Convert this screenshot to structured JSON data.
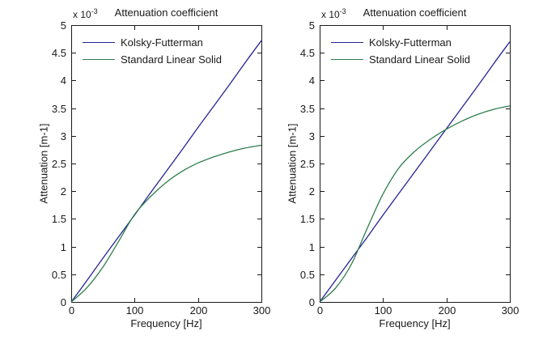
{
  "figure": {
    "background": "#ffffff",
    "axis_color": "#1a1a1a"
  },
  "chart_data": [
    {
      "type": "line",
      "title": "Attenuation coefficient",
      "xlabel": "Frequency [Hz]",
      "ylabel": "Attenuation [m-1]",
      "y_scale": {
        "base": "x 10",
        "exponent": "-3"
      },
      "xlim": [
        0,
        300
      ],
      "ylim": [
        0,
        5
      ],
      "xticks": [
        0,
        100,
        200,
        300
      ],
      "yticks": [
        0,
        0.5,
        1,
        1.5,
        2,
        2.5,
        3,
        3.5,
        4,
        4.5,
        5
      ],
      "grid": false,
      "legend_position": "upper-left",
      "x": [
        0,
        25,
        50,
        75,
        100,
        125,
        150,
        175,
        200,
        225,
        250,
        275,
        300
      ],
      "series": [
        {
          "name": "Kolsky-Futterman",
          "color": "#232396",
          "values": [
            0,
            0.39,
            0.79,
            1.18,
            1.57,
            1.97,
            2.36,
            2.75,
            3.15,
            3.54,
            3.93,
            4.33,
            4.72
          ]
        },
        {
          "name": "Standard Linear Solid",
          "color": "#2d7d4b",
          "values": [
            0,
            0.26,
            0.63,
            1.1,
            1.58,
            1.9,
            2.16,
            2.36,
            2.51,
            2.62,
            2.71,
            2.78,
            2.83
          ]
        }
      ]
    },
    {
      "type": "line",
      "title": "Attenuation coefficient",
      "xlabel": "Frequency [Hz]",
      "ylabel": "Attenuation [m-1]",
      "y_scale": {
        "base": "x 10",
        "exponent": "-3"
      },
      "xlim": [
        0,
        300
      ],
      "ylim": [
        0,
        5
      ],
      "xticks": [
        0,
        100,
        200,
        300
      ],
      "yticks": [
        0,
        0.5,
        1,
        1.5,
        2,
        2.5,
        3,
        3.5,
        4,
        4.5,
        5
      ],
      "grid": false,
      "legend_position": "upper-left",
      "x": [
        0,
        25,
        50,
        75,
        100,
        125,
        150,
        175,
        200,
        225,
        250,
        275,
        300
      ],
      "series": [
        {
          "name": "Kolsky-Futterman",
          "color": "#232396",
          "values": [
            0,
            0.39,
            0.78,
            1.17,
            1.57,
            1.96,
            2.35,
            2.74,
            3.13,
            3.52,
            3.91,
            4.31,
            4.7
          ]
        },
        {
          "name": "Standard Linear Solid",
          "color": "#2d7d4b",
          "values": [
            0,
            0.25,
            0.68,
            1.33,
            1.95,
            2.42,
            2.72,
            2.94,
            3.12,
            3.27,
            3.39,
            3.48,
            3.54
          ]
        }
      ]
    }
  ]
}
